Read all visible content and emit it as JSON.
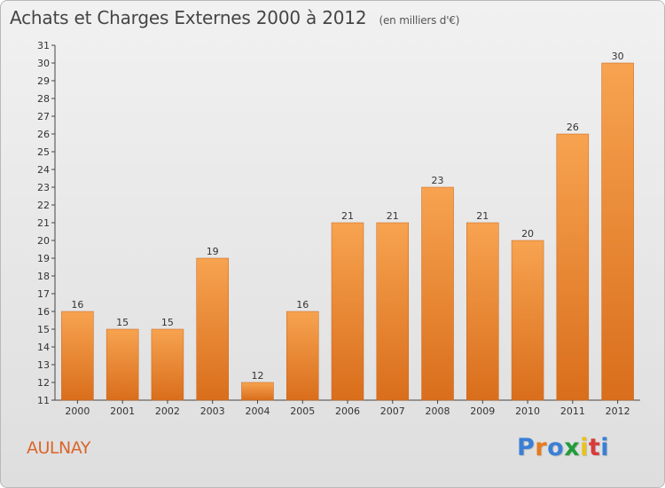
{
  "title": {
    "main": "Achats et Charges Externes 2000 à 2012",
    "sub": "(en milliers d'€)"
  },
  "city": "AULNAY",
  "brand": {
    "letters": [
      "P",
      "r",
      "o",
      "x",
      "i",
      "t",
      "i"
    ],
    "colors": [
      "#3a7fd5",
      "#e87a1e",
      "#3a7fd5",
      "#1f9d3a",
      "#e8c21e",
      "#d93a3a",
      "#3a7fd5"
    ]
  },
  "colors": {
    "bar_top": "#f7a350",
    "bar_bottom": "#d96e1c",
    "bar_edge": "#c7621a"
  },
  "chart_data": {
    "type": "bar",
    "title": "Achats et Charges Externes 2000 à 2012",
    "categories": [
      "2000",
      "2001",
      "2002",
      "2003",
      "2004",
      "2005",
      "2006",
      "2007",
      "2008",
      "2009",
      "2010",
      "2011",
      "2012"
    ],
    "values": [
      16,
      15,
      15,
      19,
      12,
      16,
      21,
      21,
      23,
      21,
      20,
      26,
      30
    ],
    "ylim": [
      11,
      31
    ],
    "yticks": [
      11,
      12,
      13,
      14,
      15,
      16,
      17,
      18,
      19,
      20,
      21,
      22,
      23,
      24,
      25,
      26,
      27,
      28,
      29,
      30,
      31
    ],
    "xlabel": "",
    "ylabel": "",
    "grid": false,
    "legend": "none"
  }
}
